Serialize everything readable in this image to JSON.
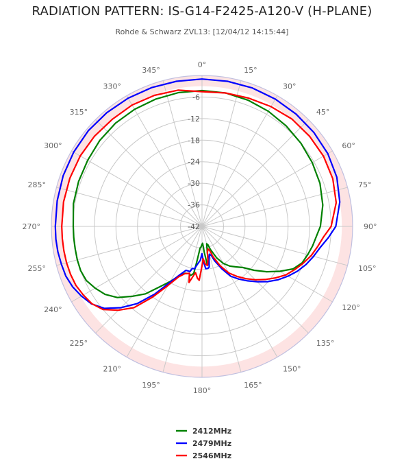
{
  "chart_data": {
    "type": "line",
    "polar": true,
    "title": "RADIATION PATTERN: IS-G14-F2425-A120-V (H-PLANE)",
    "subtitle": "Rohde & Schwarz ZVL13: [12/04/12 14:15:44]",
    "angle_ticks": [
      "0°",
      "15°",
      "30°",
      "45°",
      "60°",
      "75°",
      "90°",
      "105°",
      "120°",
      "135°",
      "150°",
      "165°",
      "180°",
      "195°",
      "210°",
      "225°",
      "240°",
      "255°",
      "270°",
      "285°",
      "300°",
      "315°",
      "330°",
      "345°"
    ],
    "radial_ticks": [
      -6,
      -12,
      -18,
      -24,
      -30,
      -36,
      -42
    ],
    "radial_range": [
      -42,
      0
    ],
    "band": [
      -3,
      0
    ],
    "band_color": "#fde3e3",
    "grid": true,
    "legend_position": "bottom",
    "series": [
      {
        "name": "2412MHz",
        "color": "#008000",
        "angles": [
          0,
          10,
          20,
          30,
          40,
          50,
          60,
          70,
          80,
          90,
          95,
          100,
          105,
          110,
          115,
          120,
          125,
          130,
          135,
          140,
          145,
          150,
          155,
          160,
          162,
          165,
          168,
          170,
          172,
          175,
          178,
          180,
          183,
          185,
          188,
          190,
          193,
          195,
          200,
          205,
          210,
          215,
          220,
          225,
          230,
          235,
          240,
          245,
          250,
          255,
          260,
          265,
          270,
          280,
          290,
          300,
          310,
          320,
          330,
          340,
          350,
          360
        ],
        "values": [
          -4.2,
          -4.3,
          -4.6,
          -5.0,
          -5.5,
          -6.0,
          -6.5,
          -7.0,
          -7.8,
          -9.0,
          -10.0,
          -10.7,
          -11.5,
          -12.3,
          -14.0,
          -17.0,
          -20.0,
          -23.0,
          -25.8,
          -27.3,
          -28.5,
          -30.1,
          -32.3,
          -35.2,
          -36.6,
          -37.0,
          -35.0,
          -32.0,
          -31.0,
          -34.8,
          -37.3,
          -37.0,
          -36.2,
          -36.0,
          -32.6,
          -28.7,
          -28.0,
          -28.4,
          -28.1,
          -26.8,
          -24.3,
          -21.5,
          -17.5,
          -14.5,
          -11.2,
          -9.0,
          -7.6,
          -6.4,
          -6.0,
          -6.0,
          -6.1,
          -6.1,
          -6.1,
          -5.6,
          -5.4,
          -5.2,
          -4.8,
          -4.5,
          -4.4,
          -4.3,
          -4.2,
          -4.2
        ]
      },
      {
        "name": "2479MHz",
        "color": "#0000ff",
        "angles": [
          0,
          10,
          20,
          30,
          40,
          50,
          60,
          70,
          80,
          90,
          95,
          100,
          105,
          110,
          115,
          120,
          125,
          130,
          135,
          140,
          145,
          150,
          155,
          160,
          162,
          165,
          168,
          170,
          172,
          175,
          178,
          180,
          183,
          185,
          188,
          190,
          193,
          195,
          200,
          205,
          210,
          215,
          220,
          225,
          230,
          235,
          240,
          245,
          250,
          255,
          260,
          265,
          270,
          280,
          290,
          300,
          310,
          320,
          330,
          340,
          350,
          360
        ],
        "values": [
          -1.0,
          -1.0,
          -1.0,
          -1.1,
          -1.2,
          -1.3,
          -1.5,
          -2.0,
          -3.0,
          -4.7,
          -6.6,
          -8.5,
          -9.8,
          -11.1,
          -12.6,
          -14.3,
          -16.1,
          -18.1,
          -20.2,
          -22.2,
          -24.1,
          -26.0,
          -29.0,
          -31.9,
          -33.4,
          -34.0,
          -32.5,
          -30.5,
          -30.2,
          -30.2,
          -32.5,
          -34.4,
          -32.5,
          -32.0,
          -31.0,
          -30.0,
          -30.0,
          -29.0,
          -29.0,
          -27.0,
          -24.0,
          -19.0,
          -14.0,
          -10.0,
          -6.5,
          -4.4,
          -3.2,
          -2.2,
          -1.6,
          -1.4,
          -1.2,
          -1.1,
          -1.1,
          -1.0,
          -0.8,
          -0.7,
          -0.6,
          -0.7,
          -0.8,
          -0.9,
          -1.0,
          -1.0
        ]
      },
      {
        "name": "2546MHz",
        "color": "#ff0000",
        "angles": [
          0,
          10,
          20,
          30,
          40,
          50,
          60,
          70,
          80,
          90,
          95,
          100,
          105,
          110,
          115,
          120,
          125,
          130,
          135,
          140,
          145,
          150,
          155,
          160,
          162,
          165,
          168,
          170,
          172,
          175,
          178,
          180,
          183,
          185,
          188,
          190,
          193,
          195,
          200,
          205,
          210,
          215,
          220,
          225,
          230,
          235,
          240,
          245,
          250,
          255,
          260,
          265,
          270,
          280,
          290,
          300,
          310,
          320,
          330,
          340,
          350,
          360
        ],
        "values": [
          -4.5,
          -4.3,
          -4.0,
          -3.5,
          -3.0,
          -2.9,
          -2.9,
          -3.2,
          -4.0,
          -6.0,
          -8.0,
          -9.3,
          -10.5,
          -12.0,
          -13.5,
          -15.0,
          -17.0,
          -19.0,
          -21.0,
          -23.0,
          -25.0,
          -27.0,
          -29.8,
          -33.0,
          -34.8,
          -35.5,
          -34.8,
          -32.5,
          -31.0,
          -31.5,
          -33.0,
          -31.0,
          -27.0,
          -27.5,
          -29.0,
          -28.0,
          -26.0,
          -28.5,
          -28.0,
          -26.5,
          -23.0,
          -18.0,
          -12.5,
          -9.0,
          -6.0,
          -4.5,
          -3.8,
          -3.2,
          -3.0,
          -2.9,
          -2.9,
          -2.9,
          -2.9,
          -2.8,
          -2.8,
          -2.8,
          -2.9,
          -3.1,
          -3.0,
          -3.2,
          -3.5,
          -4.5
        ]
      }
    ]
  }
}
